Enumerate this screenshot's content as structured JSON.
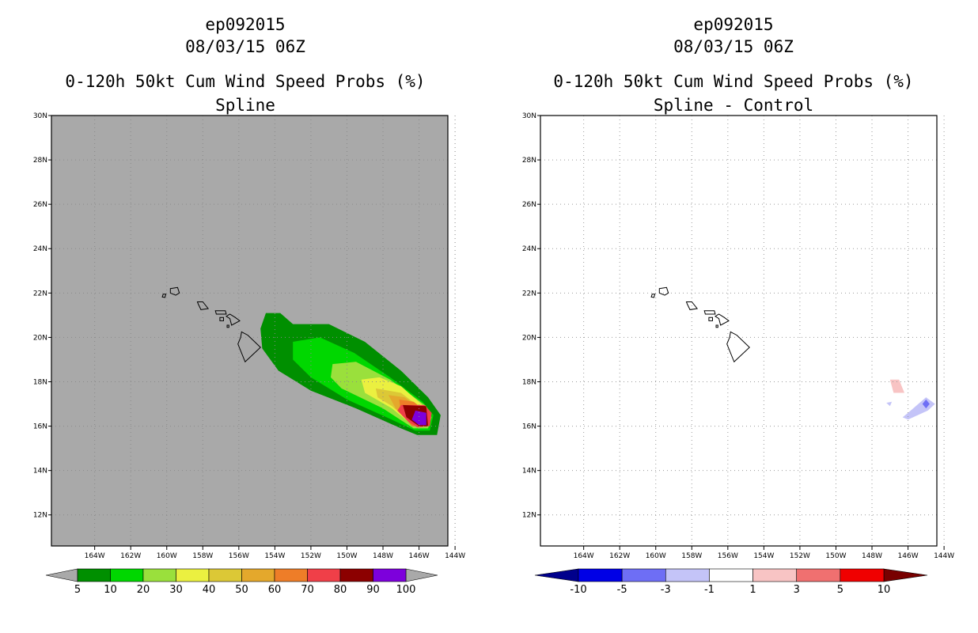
{
  "chart_data": [
    {
      "type": "heatmap",
      "title_lines": [
        "ep092015",
        "08/03/15 06Z",
        "0-120h 50kt Cum Wind Speed Probs (%)",
        "Spline"
      ],
      "x_tick_labels": [
        "164W",
        "162W",
        "160W",
        "158W",
        "156W",
        "154W",
        "152W",
        "150W",
        "148W",
        "146W",
        "144W"
      ],
      "y_tick_labels": [
        "12N",
        "14N",
        "16N",
        "18N",
        "20N",
        "22N",
        "24N",
        "26N",
        "28N",
        "30N"
      ],
      "xlim_deg_west": [
        166.4,
        144.4
      ],
      "ylim_deg_north": [
        10.6,
        30
      ],
      "background_color": "#a9a9a9",
      "gridlines": "dotted",
      "colorbar": {
        "labels": [
          "5",
          "10",
          "20",
          "30",
          "40",
          "50",
          "60",
          "70",
          "80",
          "90",
          "100"
        ],
        "colors": [
          "#008f00",
          "#00d700",
          "#9ae03c",
          "#ebf040",
          "#dcc836",
          "#e4a82c",
          "#ee7d28",
          "#f03f48",
          "#8c0000",
          "#7d00dc"
        ],
        "end_colors": [
          "#a9a9a9",
          "#a9a9a9"
        ]
      },
      "probability_contours": [
        {
          "min_pct": 5,
          "color": "#008f00",
          "points_lon_lat": [
            [
              -154.5,
              21.1
            ],
            [
              -153.7,
              21.1
            ],
            [
              -153.0,
              20.6
            ],
            [
              -151.0,
              20.6
            ],
            [
              -149.0,
              19.8
            ],
            [
              -147.0,
              18.5
            ],
            [
              -145.5,
              17.3
            ],
            [
              -144.8,
              16.5
            ],
            [
              -145.0,
              15.6
            ],
            [
              -146.1,
              15.6
            ],
            [
              -147.0,
              15.9
            ],
            [
              -149.5,
              16.8
            ],
            [
              -152.0,
              17.6
            ],
            [
              -153.8,
              18.5
            ],
            [
              -154.7,
              19.5
            ],
            [
              -154.8,
              20.4
            ]
          ]
        },
        {
          "min_pct": 10,
          "color": "#00d700",
          "points_lon_lat": [
            [
              -153.0,
              19.8
            ],
            [
              -151.5,
              20.0
            ],
            [
              -149.6,
              19.3
            ],
            [
              -147.6,
              18.2
            ],
            [
              -145.8,
              17.1
            ],
            [
              -145.2,
              16.5
            ],
            [
              -145.4,
              15.8
            ],
            [
              -146.2,
              15.8
            ],
            [
              -147.8,
              16.4
            ],
            [
              -150.0,
              17.2
            ],
            [
              -152.0,
              18.2
            ],
            [
              -153.0,
              19.0
            ]
          ]
        },
        {
          "min_pct": 20,
          "color": "#9ae03c",
          "points_lon_lat": [
            [
              -150.8,
              18.8
            ],
            [
              -149.5,
              18.9
            ],
            [
              -147.6,
              18.1
            ],
            [
              -145.6,
              16.9
            ],
            [
              -145.3,
              16.4
            ],
            [
              -145.5,
              15.9
            ],
            [
              -146.3,
              15.9
            ],
            [
              -148.0,
              16.8
            ],
            [
              -150.3,
              17.7
            ],
            [
              -150.9,
              18.2
            ]
          ]
        },
        {
          "min_pct": 30,
          "color": "#ebf040",
          "points_lon_lat": [
            [
              -149.2,
              18.1
            ],
            [
              -148.2,
              18.2
            ],
            [
              -147.0,
              17.8
            ],
            [
              -145.6,
              16.8
            ],
            [
              -145.4,
              16.3
            ],
            [
              -145.6,
              16.0
            ],
            [
              -146.3,
              16.0
            ],
            [
              -147.5,
              16.8
            ],
            [
              -149.0,
              17.5
            ]
          ]
        },
        {
          "min_pct": 40,
          "color": "#dcc836",
          "points_lon_lat": [
            [
              -148.4,
              17.7
            ],
            [
              -147.0,
              17.5
            ],
            [
              -145.7,
              16.7
            ],
            [
              -145.5,
              16.3
            ],
            [
              -145.7,
              16.0
            ],
            [
              -146.4,
              16.1
            ],
            [
              -147.5,
              16.9
            ],
            [
              -148.3,
              17.3
            ]
          ]
        },
        {
          "min_pct": 50,
          "color": "#e4a82c",
          "points_lon_lat": [
            [
              -147.7,
              17.4
            ],
            [
              -146.8,
              17.3
            ],
            [
              -145.8,
              16.7
            ],
            [
              -145.5,
              16.3
            ],
            [
              -145.7,
              16.0
            ],
            [
              -146.4,
              16.1
            ],
            [
              -147.3,
              16.8
            ]
          ]
        },
        {
          "min_pct": 60,
          "color": "#ee7d28",
          "points_lon_lat": [
            [
              -147.1,
              17.2
            ],
            [
              -146.3,
              17.1
            ],
            [
              -145.5,
              16.6
            ],
            [
              -145.5,
              16.0
            ],
            [
              -146.4,
              16.0
            ],
            [
              -147.0,
              16.6
            ]
          ]
        },
        {
          "min_pct": 70,
          "color": "#f03f48",
          "points_lon_lat": [
            [
              -147.0,
              16.95
            ],
            [
              -145.7,
              16.95
            ],
            [
              -145.3,
              16.6
            ],
            [
              -145.4,
              16.0
            ],
            [
              -146.1,
              15.95
            ],
            [
              -146.6,
              16.2
            ],
            [
              -147.2,
              16.7
            ]
          ]
        },
        {
          "min_pct": 80,
          "color": "#8c0000",
          "points_lon_lat": [
            [
              -146.9,
              16.95
            ],
            [
              -145.6,
              16.9
            ],
            [
              -145.5,
              16.0
            ],
            [
              -146.0,
              16.0
            ],
            [
              -146.7,
              16.4
            ]
          ]
        },
        {
          "min_pct": 90,
          "color": "#7d00dc",
          "points_lon_lat": [
            [
              -146.2,
              16.7
            ],
            [
              -145.6,
              16.6
            ],
            [
              -145.6,
              16.05
            ],
            [
              -146.0,
              16.05
            ],
            [
              -146.4,
              16.3
            ]
          ]
        }
      ]
    },
    {
      "type": "heatmap",
      "title_lines": [
        "ep092015",
        "08/03/15 06Z",
        "0-120h 50kt Cum Wind Speed Probs (%)",
        "Spline - Control"
      ],
      "x_tick_labels": [
        "164W",
        "162W",
        "160W",
        "158W",
        "156W",
        "154W",
        "152W",
        "150W",
        "148W",
        "146W",
        "144W"
      ],
      "y_tick_labels": [
        "12N",
        "14N",
        "16N",
        "18N",
        "20N",
        "22N",
        "24N",
        "26N",
        "28N",
        "30N"
      ],
      "xlim_deg_west": [
        166.4,
        144.4
      ],
      "ylim_deg_north": [
        10.6,
        30
      ],
      "background_color": "#ffffff",
      "gridlines": "dotted",
      "colorbar": {
        "labels": [
          "-10",
          "-5",
          "-3",
          "-1",
          "1",
          "3",
          "5",
          "10"
        ],
        "colors": [
          "#0000e6",
          "#6e6ef5",
          "#c4c4f8",
          "#ffffff",
          "#f8c4c4",
          "#f07070",
          "#f00000"
        ],
        "end_colors": [
          "#00008c",
          "#780000"
        ]
      },
      "difference_contours": [
        {
          "value_range": [
            1,
            3
          ],
          "color": "#f8c4c4",
          "points_lon_lat": [
            [
              -147.0,
              18.1
            ],
            [
              -146.5,
              18.1
            ],
            [
              -146.2,
              17.5
            ],
            [
              -146.8,
              17.5
            ]
          ]
        },
        {
          "value_range": [
            -3,
            -1
          ],
          "color": "#c4c4f8",
          "points_lon_lat": [
            [
              -146.0,
              16.6
            ],
            [
              -145.0,
              17.3
            ],
            [
              -144.5,
              17.0
            ],
            [
              -144.9,
              16.7
            ],
            [
              -146.0,
              16.3
            ],
            [
              -146.3,
              16.4
            ]
          ]
        },
        {
          "value_range": [
            -3,
            -1
          ],
          "color": "#c4c4f8",
          "points_lon_lat": [
            [
              -147.2,
              17.05
            ],
            [
              -146.9,
              17.1
            ],
            [
              -147.0,
              16.9
            ]
          ]
        },
        {
          "value_range": [
            -5,
            -3
          ],
          "color": "#6e6ef5",
          "points_lon_lat": [
            [
              -145.0,
              17.2
            ],
            [
              -144.8,
              17.0
            ],
            [
              -145.0,
              16.8
            ],
            [
              -145.2,
              17.0
            ]
          ]
        }
      ]
    }
  ],
  "map": {
    "islands_lon_lat": [
      [
        [
          -159.8,
          22.2
        ],
        [
          -159.4,
          22.25
        ],
        [
          -159.3,
          22.0
        ],
        [
          -159.5,
          21.9
        ],
        [
          -159.8,
          22.0
        ]
      ],
      [
        [
          -160.2,
          21.95
        ],
        [
          -160.05,
          21.95
        ],
        [
          -160.1,
          21.8
        ],
        [
          -160.25,
          21.82
        ]
      ],
      [
        [
          -158.3,
          21.6
        ],
        [
          -158.0,
          21.6
        ],
        [
          -157.7,
          21.3
        ],
        [
          -158.1,
          21.25
        ],
        [
          -158.25,
          21.5
        ]
      ],
      [
        [
          -157.3,
          21.2
        ],
        [
          -156.75,
          21.2
        ],
        [
          -156.7,
          21.05
        ],
        [
          -157.25,
          21.05
        ]
      ],
      [
        [
          -156.7,
          20.95
        ],
        [
          -156.5,
          21.05
        ],
        [
          -156.2,
          20.9
        ],
        [
          -155.95,
          20.75
        ],
        [
          -156.4,
          20.55
        ],
        [
          -156.5,
          20.85
        ]
      ],
      [
        [
          -157.05,
          20.9
        ],
        [
          -156.85,
          20.9
        ],
        [
          -156.85,
          20.75
        ],
        [
          -157.05,
          20.75
        ]
      ],
      [
        [
          -156.65,
          20.55
        ],
        [
          -156.55,
          20.55
        ],
        [
          -156.55,
          20.45
        ],
        [
          -156.65,
          20.45
        ]
      ],
      [
        [
          -155.85,
          20.25
        ],
        [
          -155.5,
          20.1
        ],
        [
          -154.8,
          19.55
        ],
        [
          -155.65,
          18.9
        ],
        [
          -156.05,
          19.7
        ],
        [
          -155.9,
          20.0
        ]
      ]
    ]
  }
}
